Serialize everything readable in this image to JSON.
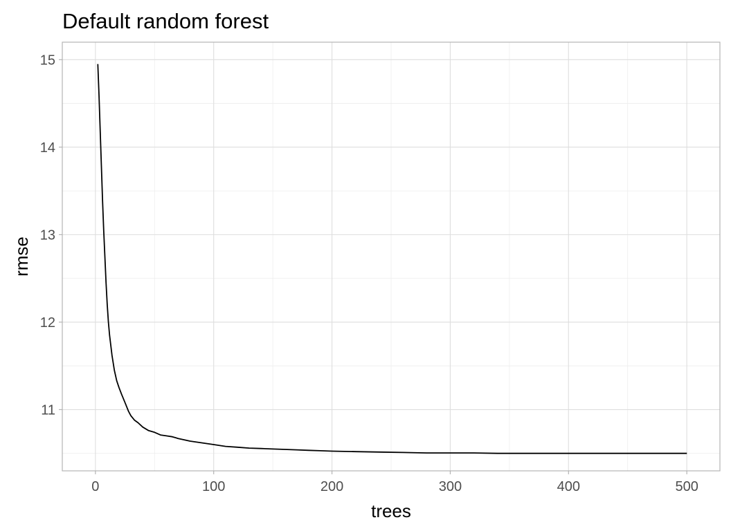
{
  "chart_data": {
    "type": "line",
    "title": "Default random forest",
    "xlabel": "trees",
    "ylabel": "rmse",
    "xlim": [
      -28,
      528
    ],
    "ylim": [
      10.3,
      15.2
    ],
    "x_ticks": [
      0,
      100,
      200,
      300,
      400,
      500
    ],
    "y_ticks": [
      11,
      12,
      13,
      14,
      15
    ],
    "x_minor_ticks": [
      50,
      150,
      250,
      350,
      450
    ],
    "y_minor_ticks": [
      10.5,
      11.5,
      12.5,
      13.5,
      14.5
    ],
    "grid": true,
    "legend": "none",
    "line_color": "#000000",
    "series": [
      {
        "x": [
          2,
          3,
          4,
          5,
          6,
          7,
          8,
          9,
          10,
          11,
          12,
          14,
          16,
          18,
          20,
          22,
          25,
          28,
          30,
          33,
          36,
          40,
          45,
          50,
          55,
          60,
          65,
          70,
          80,
          90,
          100,
          110,
          120,
          130,
          140,
          150,
          160,
          170,
          180,
          190,
          200,
          220,
          240,
          260,
          280,
          300,
          320,
          340,
          360,
          380,
          400,
          420,
          440,
          460,
          480,
          500
        ],
        "y": [
          14.95,
          14.6,
          14.2,
          13.8,
          13.4,
          13.05,
          12.75,
          12.45,
          12.2,
          12.0,
          11.85,
          11.62,
          11.45,
          11.33,
          11.25,
          11.18,
          11.08,
          10.98,
          10.93,
          10.88,
          10.85,
          10.8,
          10.76,
          10.74,
          10.71,
          10.7,
          10.69,
          10.67,
          10.64,
          10.62,
          10.6,
          10.58,
          10.57,
          10.56,
          10.555,
          10.55,
          10.545,
          10.54,
          10.535,
          10.53,
          10.525,
          10.52,
          10.515,
          10.51,
          10.505,
          10.505,
          10.505,
          10.5,
          10.5,
          10.5,
          10.5,
          10.5,
          10.5,
          10.5,
          10.5,
          10.5
        ]
      }
    ]
  }
}
